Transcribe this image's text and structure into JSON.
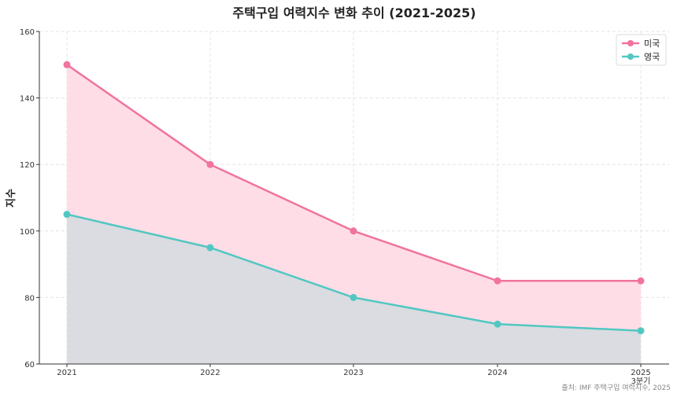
{
  "chart_data": {
    "type": "area",
    "title": "주택구입 여력지수 변화 추이 (2021-2025)",
    "xlabel": "",
    "ylabel": "지수",
    "categories": [
      "2021",
      "2022",
      "2023",
      "2024",
      "2025\n3분기"
    ],
    "series": [
      {
        "name": "미국",
        "values": [
          150,
          120,
          100,
          85,
          85
        ],
        "color": "#f0749c",
        "fill": "#ffdde7"
      },
      {
        "name": "영국",
        "values": [
          105,
          95,
          80,
          72,
          70
        ],
        "color": "#52c7c2",
        "fill": "#dadce1"
      }
    ],
    "ylim": [
      60,
      160
    ],
    "yticks": [
      60,
      80,
      100,
      120,
      140,
      160
    ],
    "grid": true,
    "legend_position": "top-right",
    "source": "출처: IMF 주택구입 여력지수, 2025"
  }
}
